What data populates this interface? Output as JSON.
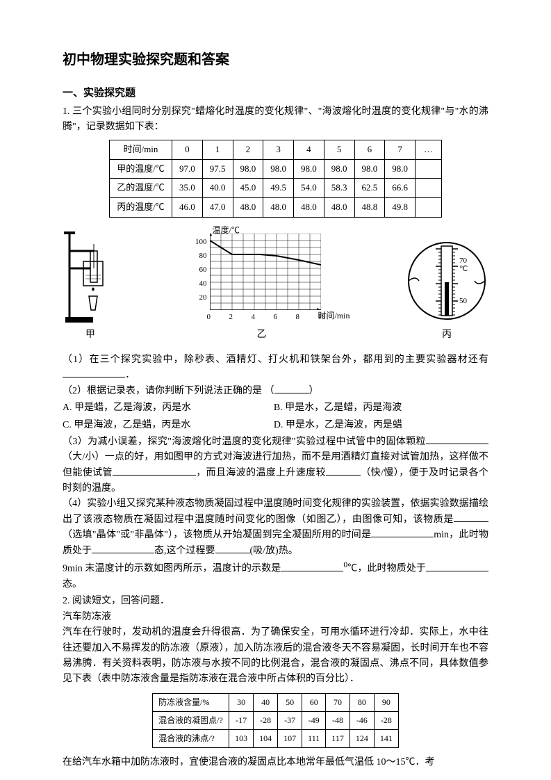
{
  "title": "初中物理实验探究题和答案",
  "section1_heading": "一、实验探究题",
  "q1_intro": "1. 三个实验小组同时分别探究\"蜡熔化时温度的变化规律\"、\"海波熔化时温度的变化规律\"与\"水的沸腾\"，记录数据如下表：",
  "table1": {
    "header_label": "时间/min",
    "cols": [
      "0",
      "1",
      "2",
      "3",
      "4",
      "5",
      "6",
      "7",
      "…"
    ],
    "rows": [
      {
        "label": "甲的温度/℃",
        "cells": [
          "97.0",
          "97.5",
          "98.0",
          "98.0",
          "98.0",
          "98.0",
          "98.0",
          "98.0",
          ""
        ]
      },
      {
        "label": "乙的温度/℃",
        "cells": [
          "35.0",
          "40.0",
          "45.0",
          "49.5",
          "54.0",
          "58.3",
          "62.5",
          "66.6",
          ""
        ]
      },
      {
        "label": "丙的温度/℃",
        "cells": [
          "46.0",
          "47.0",
          "48.0",
          "48.0",
          "48.0",
          "48.0",
          "48.8",
          "49.8",
          ""
        ]
      }
    ]
  },
  "fig_labels": {
    "a": "甲",
    "b": "乙",
    "c": "丙"
  },
  "graph": {
    "y_title": "温度/℃",
    "x_title": "时间/min",
    "y_ticks": [
      20,
      40,
      60,
      80,
      100
    ],
    "x_ticks": [
      0,
      2,
      4,
      6,
      8,
      10
    ],
    "xlim": [
      0,
      10
    ],
    "ylim": [
      0,
      110
    ],
    "line_points": [
      [
        0,
        100
      ],
      [
        2,
        80
      ],
      [
        3.5,
        80
      ],
      [
        4.5,
        80
      ],
      [
        6,
        78
      ],
      [
        8,
        72
      ],
      [
        10,
        65
      ]
    ],
    "line_color": "#000000",
    "grid_color": "#000000",
    "bg": "#ffffff"
  },
  "thermo": {
    "mark_lo": 50,
    "mark_hi": 70,
    "unit": "℃"
  },
  "q1_p1a": "（1）在三个探究实验中，除秒表、酒精灯、打火机和铁架台外，都用到的主要实验器材还有",
  "q1_p1b": "．",
  "q1_p2": "（2）根据记录表，请你判断下列说法正确的是 （",
  "q1_p2_end": "）",
  "opts": {
    "A": "A.  甲是蜡，乙是海波，丙是水",
    "B": "B.  甲是水，乙是蜡，丙是海波",
    "C": "C.  甲是海波，乙是蜡，丙是水",
    "D": "D.  甲是水，乙是海波，丙是蜡"
  },
  "q1_p3a": "（3）为减小误差，探究\"海波熔化时温度的变化规律\"实验过程中试管中的固体颗粒",
  "q1_p3b": "（大/小）一点的好，用如图甲的方式对海波进行加热，而不是用酒精灯直接对试管加热，这样做不但能使试管",
  "q1_p3c": "，而且海波的温度上升速度较",
  "q1_p3d": "（快/慢），便于及时记录各个时刻的温度。",
  "q1_p4a": "（4）实验小组又探究某种液态物质凝固过程中温度随时间变化规律的实验装置，依据实验数据描绘出了该液态物质在凝固过程中温度随时间变化的图像（如图乙），由图像可知，该物质是",
  "q1_p4b": "（选填\"晶体\"或\"非晶体\"），该物质从开始凝固到完全凝固所用的时间是",
  "q1_p4c": "min，此时物质处于",
  "q1_p4d": "态,这个过程要",
  "q1_p4e": "(吸/放)热。",
  "q1_p5a": "9min 末温度计的示数如图丙所示，温度计的示数是",
  "q1_p5b": "℃，此时物质处于",
  "q1_p5c": "态。",
  "q2_head": "2. 阅读短文，回答问题．",
  "q2_title": "汽车防冻液",
  "q2_body": "汽车在行驶时，发动机的温度会升得很高．为了确保安全，可用水循环进行冷却．实际上，水中往往还要加入不易挥发的防冻液（原液），加入防冻液后的混合液冬天不容易凝固，长时间开车也不容易沸腾．有关资料表明，防冻液与水按不同的比例混合，混合液的凝固点、沸点不同，具体数值参见下表（表中防冻液含量是指防冻液在混合液中所占体积的百分比）．",
  "table2": {
    "rows": [
      {
        "label": "防冻液含量/%",
        "cells": [
          "30",
          "40",
          "50",
          "60",
          "70",
          "80",
          "90"
        ]
      },
      {
        "label": "混合液的凝固点/?",
        "cells": [
          "-17",
          "-28",
          "-37",
          "-49",
          "-48",
          "-46",
          "-28"
        ]
      },
      {
        "label": "混合液的沸点/?",
        "cells": [
          "103",
          "104",
          "107",
          "111",
          "117",
          "124",
          "141"
        ]
      }
    ]
  },
  "q2_foot": "在给汽车水箱中加防冻液时，宜使混合液的凝固点比本地常年最低气温低 10～15℃．考"
}
